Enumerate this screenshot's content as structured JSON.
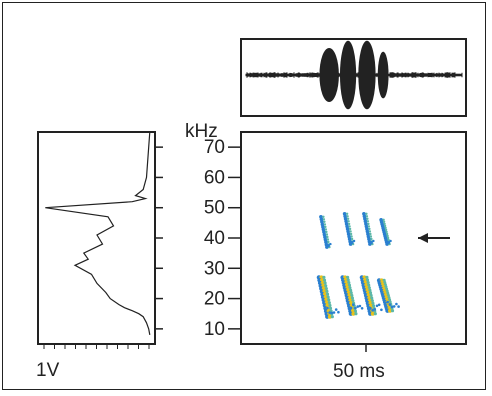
{
  "figure": {
    "freq_unit": "kHz",
    "time_scale_label": "50 ms",
    "amplitude_scale_label": "1V"
  },
  "colors": {
    "ink": "#222222",
    "spectro_low": "#2a7fd0",
    "spectro_high": "#e9c21a",
    "spectro_mid": "#5cb8a8"
  },
  "chart_data": [
    {
      "type": "line",
      "panel": "waveform",
      "title": "",
      "xlabel": "",
      "ylabel": "",
      "x_range_ms": [
        0,
        100
      ],
      "pulses": [
        {
          "start_ms": 34,
          "end_ms": 43,
          "relative_amplitude": 0.75
        },
        {
          "start_ms": 43.5,
          "end_ms": 51,
          "relative_amplitude": 0.95
        },
        {
          "start_ms": 52,
          "end_ms": 60,
          "relative_amplitude": 0.95
        },
        {
          "start_ms": 61,
          "end_ms": 66,
          "relative_amplitude": 0.65
        }
      ],
      "grid": false
    },
    {
      "type": "line",
      "panel": "power-spectrum",
      "title": "",
      "xlabel": "1V",
      "ylabel": "kHz",
      "ylim": [
        5,
        75
      ],
      "y_ticks": [
        10,
        20,
        30,
        40,
        50,
        60,
        70
      ],
      "orientation": "horizontal",
      "series": [
        {
          "x": [
            0.02,
            0.03,
            0.05,
            0.08,
            0.15,
            0.06,
            0.18,
            0.97,
            0.4,
            0.35,
            0.5,
            0.45,
            0.62,
            0.58,
            0.7,
            0.55,
            0.5,
            0.42,
            0.38,
            0.3,
            0.25,
            0.18,
            0.12,
            0.08,
            0.05,
            0.03,
            0.02
          ],
          "y": [
            75,
            70,
            60,
            56,
            54,
            53,
            52,
            50,
            47,
            44,
            41,
            38,
            35,
            33,
            31,
            28,
            25,
            22,
            20,
            18,
            17,
            16,
            15,
            14,
            12,
            10,
            8
          ]
        }
      ],
      "grid": false
    },
    {
      "type": "heatmap",
      "panel": "spectrogram",
      "title": "",
      "xlabel": "50 ms",
      "ylabel": "kHz",
      "ylim": [
        5,
        75
      ],
      "y_ticks": [
        10,
        20,
        30,
        40,
        50,
        60,
        70
      ],
      "x_range_ms": [
        0,
        100
      ],
      "calls": [
        {
          "time_ms": 36,
          "harmonic1_khz": [
            27,
            14
          ],
          "harmonic2_khz": [
            47,
            37
          ]
        },
        {
          "time_ms": 47,
          "harmonic1_khz": [
            27,
            15
          ],
          "harmonic2_khz": [
            48,
            38
          ]
        },
        {
          "time_ms": 56,
          "harmonic1_khz": [
            27,
            15
          ],
          "harmonic2_khz": [
            48,
            38
          ]
        },
        {
          "time_ms": 64,
          "harmonic1_khz": [
            26,
            16
          ],
          "harmonic2_khz": [
            46,
            38
          ]
        }
      ],
      "annotation_arrow_khz": 40,
      "grid": false
    }
  ]
}
